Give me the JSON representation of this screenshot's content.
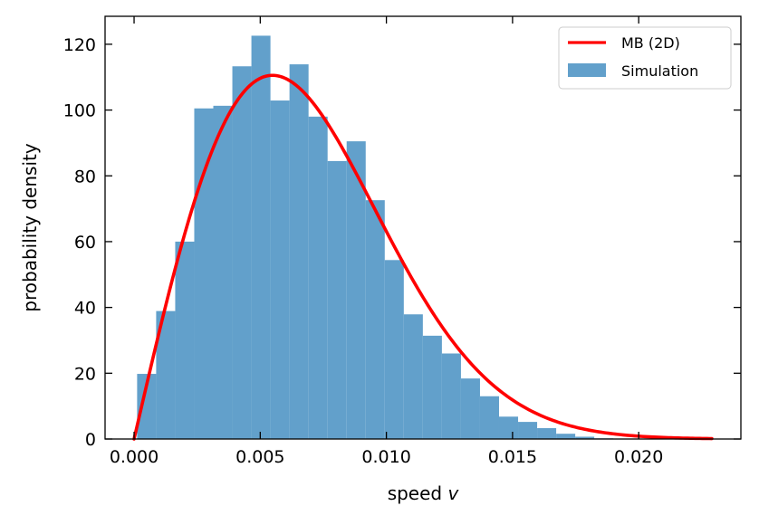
{
  "chart_data": {
    "type": "bar",
    "xlabel_text": "speed ",
    "xlabel_var": "v",
    "ylabel": "probability density",
    "xlim": [
      -0.00115,
      0.02405
    ],
    "ylim": [
      0,
      128.5
    ],
    "x_ticks": [
      0.0,
      0.005,
      0.01,
      0.015,
      0.02
    ],
    "x_tick_labels": [
      "0.000",
      "0.005",
      "0.010",
      "0.015",
      "0.020"
    ],
    "y_ticks": [
      0,
      20,
      40,
      60,
      80,
      100,
      120
    ],
    "y_tick_labels": [
      "0",
      "20",
      "40",
      "60",
      "80",
      "100",
      "120"
    ],
    "grid": false,
    "legend_position": "top-right",
    "colors": {
      "histogram": "#62a0cb",
      "curve": "#ff0000"
    },
    "series": [
      {
        "name": "MB (2D)",
        "kind": "line",
        "function": "x / s2 * exp(-x^2 / (2 * s2))",
        "s2": 3.01e-05,
        "x_range": [
          0.0,
          0.0229
        ]
      },
      {
        "name": "Simulation",
        "kind": "histogram",
        "bin_start": 0.00012,
        "bin_width": 0.000755,
        "values": [
          19.8,
          38.9,
          60.0,
          100.5,
          101.3,
          113.3,
          122.6,
          102.9,
          113.9,
          98.0,
          84.5,
          90.5,
          72.6,
          54.4,
          37.9,
          31.4,
          26.0,
          18.4,
          13.0,
          6.8,
          5.2,
          3.3,
          1.6,
          0.7,
          0.2
        ]
      }
    ]
  }
}
